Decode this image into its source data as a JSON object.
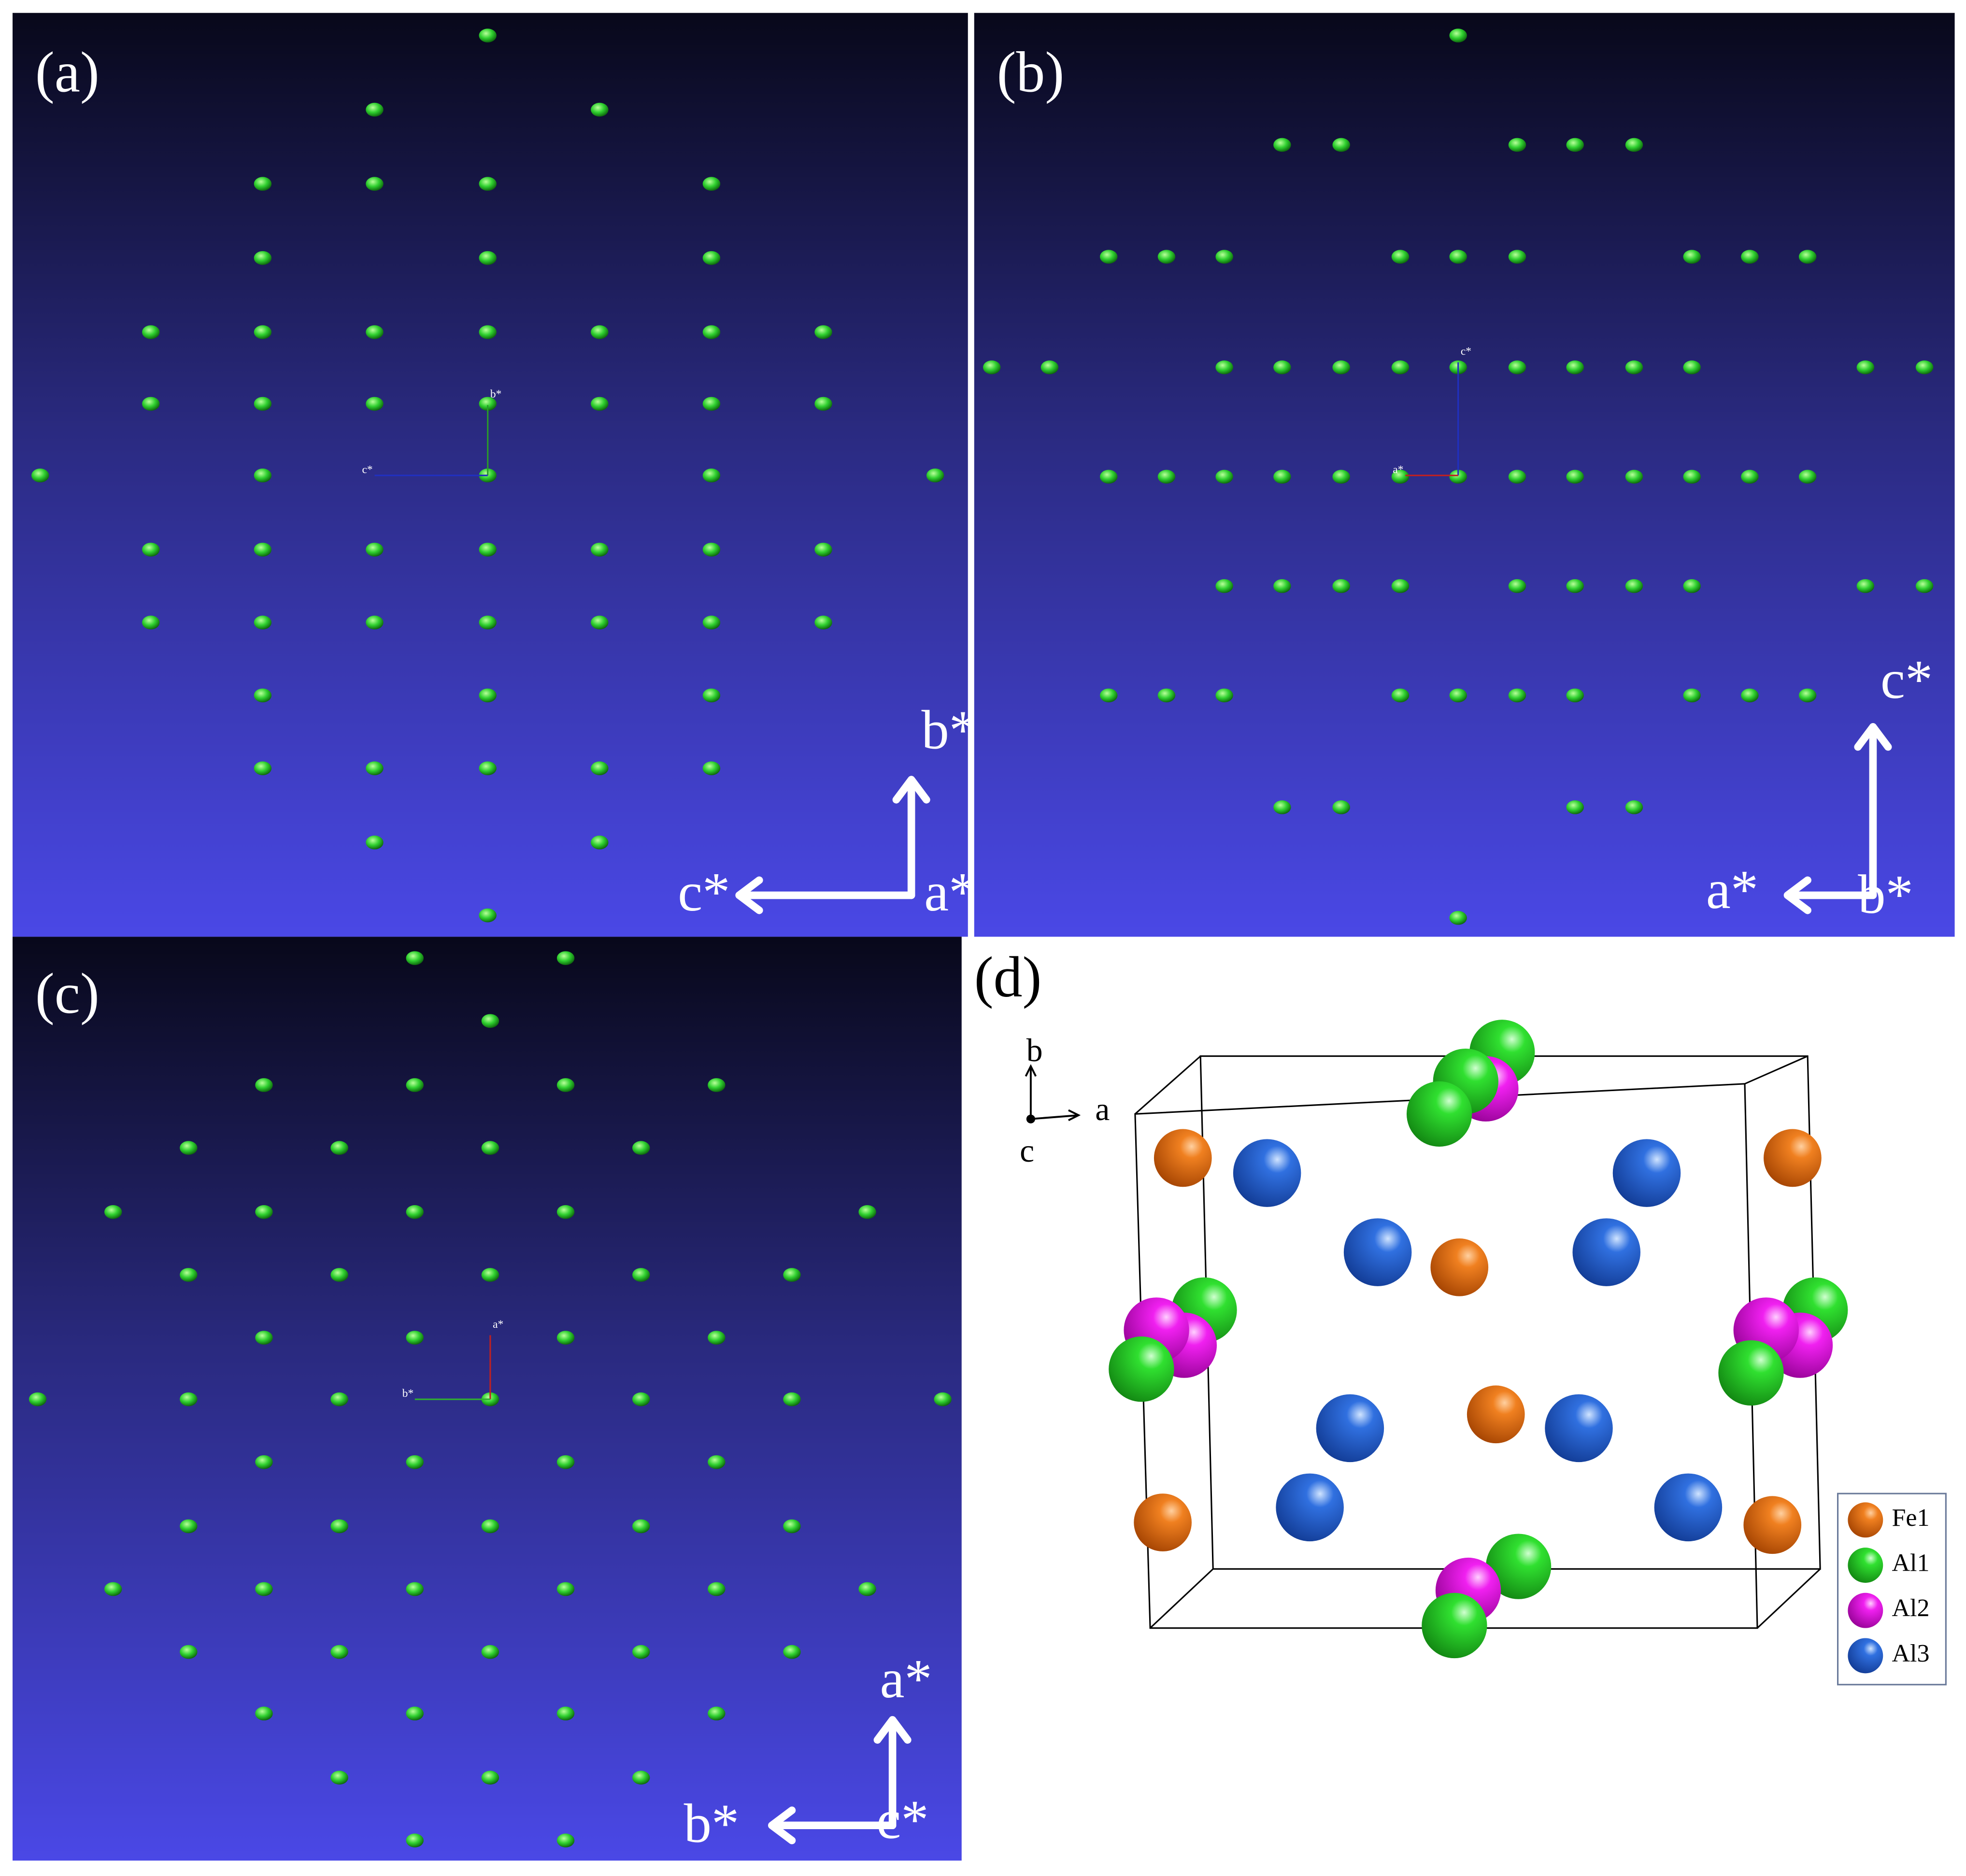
{
  "panels": [
    {
      "label": "(a)",
      "axes": {
        "up": "b*",
        "left": "c*",
        "corner": "a*"
      },
      "view_axes": {
        "up": "b*",
        "left": "c*"
      }
    },
    {
      "label": "(b)",
      "axes": {
        "up": "c*",
        "left": "a*",
        "corner": "b*"
      },
      "view_axes": {
        "up": "c*",
        "left": "a*"
      }
    },
    {
      "label": "(c)",
      "axes": {
        "up": "a*",
        "left": "b*",
        "corner": "c*"
      },
      "view_axes": {
        "up": "a*",
        "left": "b*"
      }
    }
  ],
  "structure": {
    "label": "(d)",
    "axes": {
      "up": "b",
      "right": "a",
      "out": "c"
    },
    "legend": [
      "Fe1",
      "Al1",
      "Al2",
      "Al3"
    ]
  }
}
